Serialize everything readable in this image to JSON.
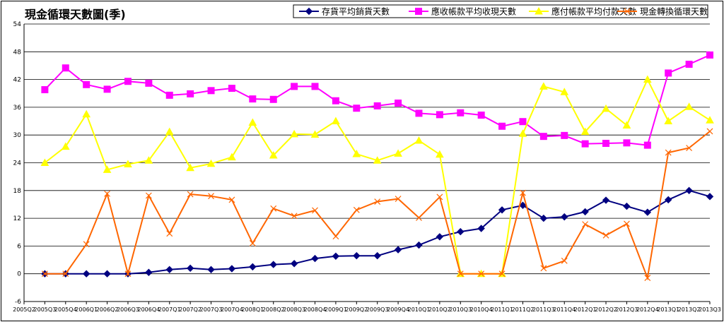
{
  "chart_data": {
    "type": "line",
    "title": "現金循環天數圖(季)",
    "ylim": [
      -6,
      54
    ],
    "yticks": [
      -6,
      0,
      6,
      12,
      18,
      24,
      30,
      36,
      42,
      48,
      54
    ],
    "grid": true,
    "legend_position": "top-right",
    "categories": [
      "2005Q2",
      "2005Q3",
      "2005Q4",
      "2006Q1",
      "2006Q2",
      "2006Q3",
      "2006Q4",
      "2007Q1",
      "2007Q2",
      "2007Q3",
      "2007Q4",
      "2008Q1",
      "2008Q2",
      "2008Q3",
      "2008Q4",
      "2009Q1",
      "2009Q2",
      "2009Q3",
      "2009Q4",
      "2010Q1",
      "2010Q2",
      "2010Q3",
      "2010Q4",
      "2011Q1",
      "2011Q2",
      "2011Q3",
      "2011Q4",
      "2012Q1",
      "2012Q2",
      "2012Q3",
      "2012Q4",
      "2013Q1",
      "2013Q2",
      "2013Q3"
    ],
    "series": [
      {
        "name": "存貨平均銷貨天數",
        "color": "#000080",
        "marker": "diamond",
        "values": [
          null,
          0,
          0,
          0,
          0,
          0,
          0.3,
          0.9,
          1.2,
          0.9,
          1.1,
          1.5,
          2.0,
          2.2,
          3.3,
          3.8,
          3.9,
          3.9,
          5.2,
          6.2,
          8.0,
          9.1,
          9.8,
          13.8,
          14.8,
          12.0,
          12.3,
          13.4,
          15.9,
          14.6,
          13.3,
          16.0,
          18.0,
          16.7
        ]
      },
      {
        "name": "應收帳款平均收現天數",
        "color": "#FF00FF",
        "marker": "square",
        "values": [
          null,
          39.8,
          44.5,
          40.9,
          39.9,
          41.6,
          41.2,
          38.6,
          38.9,
          39.6,
          40.1,
          37.8,
          37.7,
          40.5,
          40.5,
          37.4,
          35.8,
          36.3,
          36.9,
          34.7,
          34.4,
          34.8,
          34.3,
          31.9,
          32.9,
          29.7,
          29.9,
          28.1,
          28.2,
          28.3,
          27.8,
          43.4,
          45.3,
          47.3
        ]
      },
      {
        "name": "應付帳款平均付款天數",
        "color": "#FFFF00",
        "marker": "triangle",
        "values": [
          null,
          24.0,
          27.5,
          34.5,
          22.5,
          23.7,
          24.5,
          30.7,
          22.9,
          23.8,
          25.2,
          32.7,
          25.6,
          30.2,
          30.1,
          33.0,
          25.9,
          24.5,
          26.0,
          28.8,
          25.8,
          0,
          0,
          0,
          30.3,
          40.5,
          39.3,
          30.7,
          35.7,
          32.1,
          42.0,
          33.0,
          36.1,
          33.2
        ]
      },
      {
        "name": "現金轉換循環天數",
        "color": "#FF6600",
        "marker": "x",
        "values": [
          null,
          0,
          0,
          6.4,
          17.3,
          0,
          16.9,
          8.7,
          17.2,
          16.8,
          16.0,
          6.6,
          14.1,
          12.5,
          13.7,
          8.1,
          13.8,
          15.6,
          16.2,
          12.1,
          16.6,
          0,
          0,
          0,
          17.5,
          1.2,
          2.8,
          10.7,
          8.3,
          10.8,
          -0.9,
          26.2,
          27.2,
          30.8
        ]
      }
    ]
  }
}
